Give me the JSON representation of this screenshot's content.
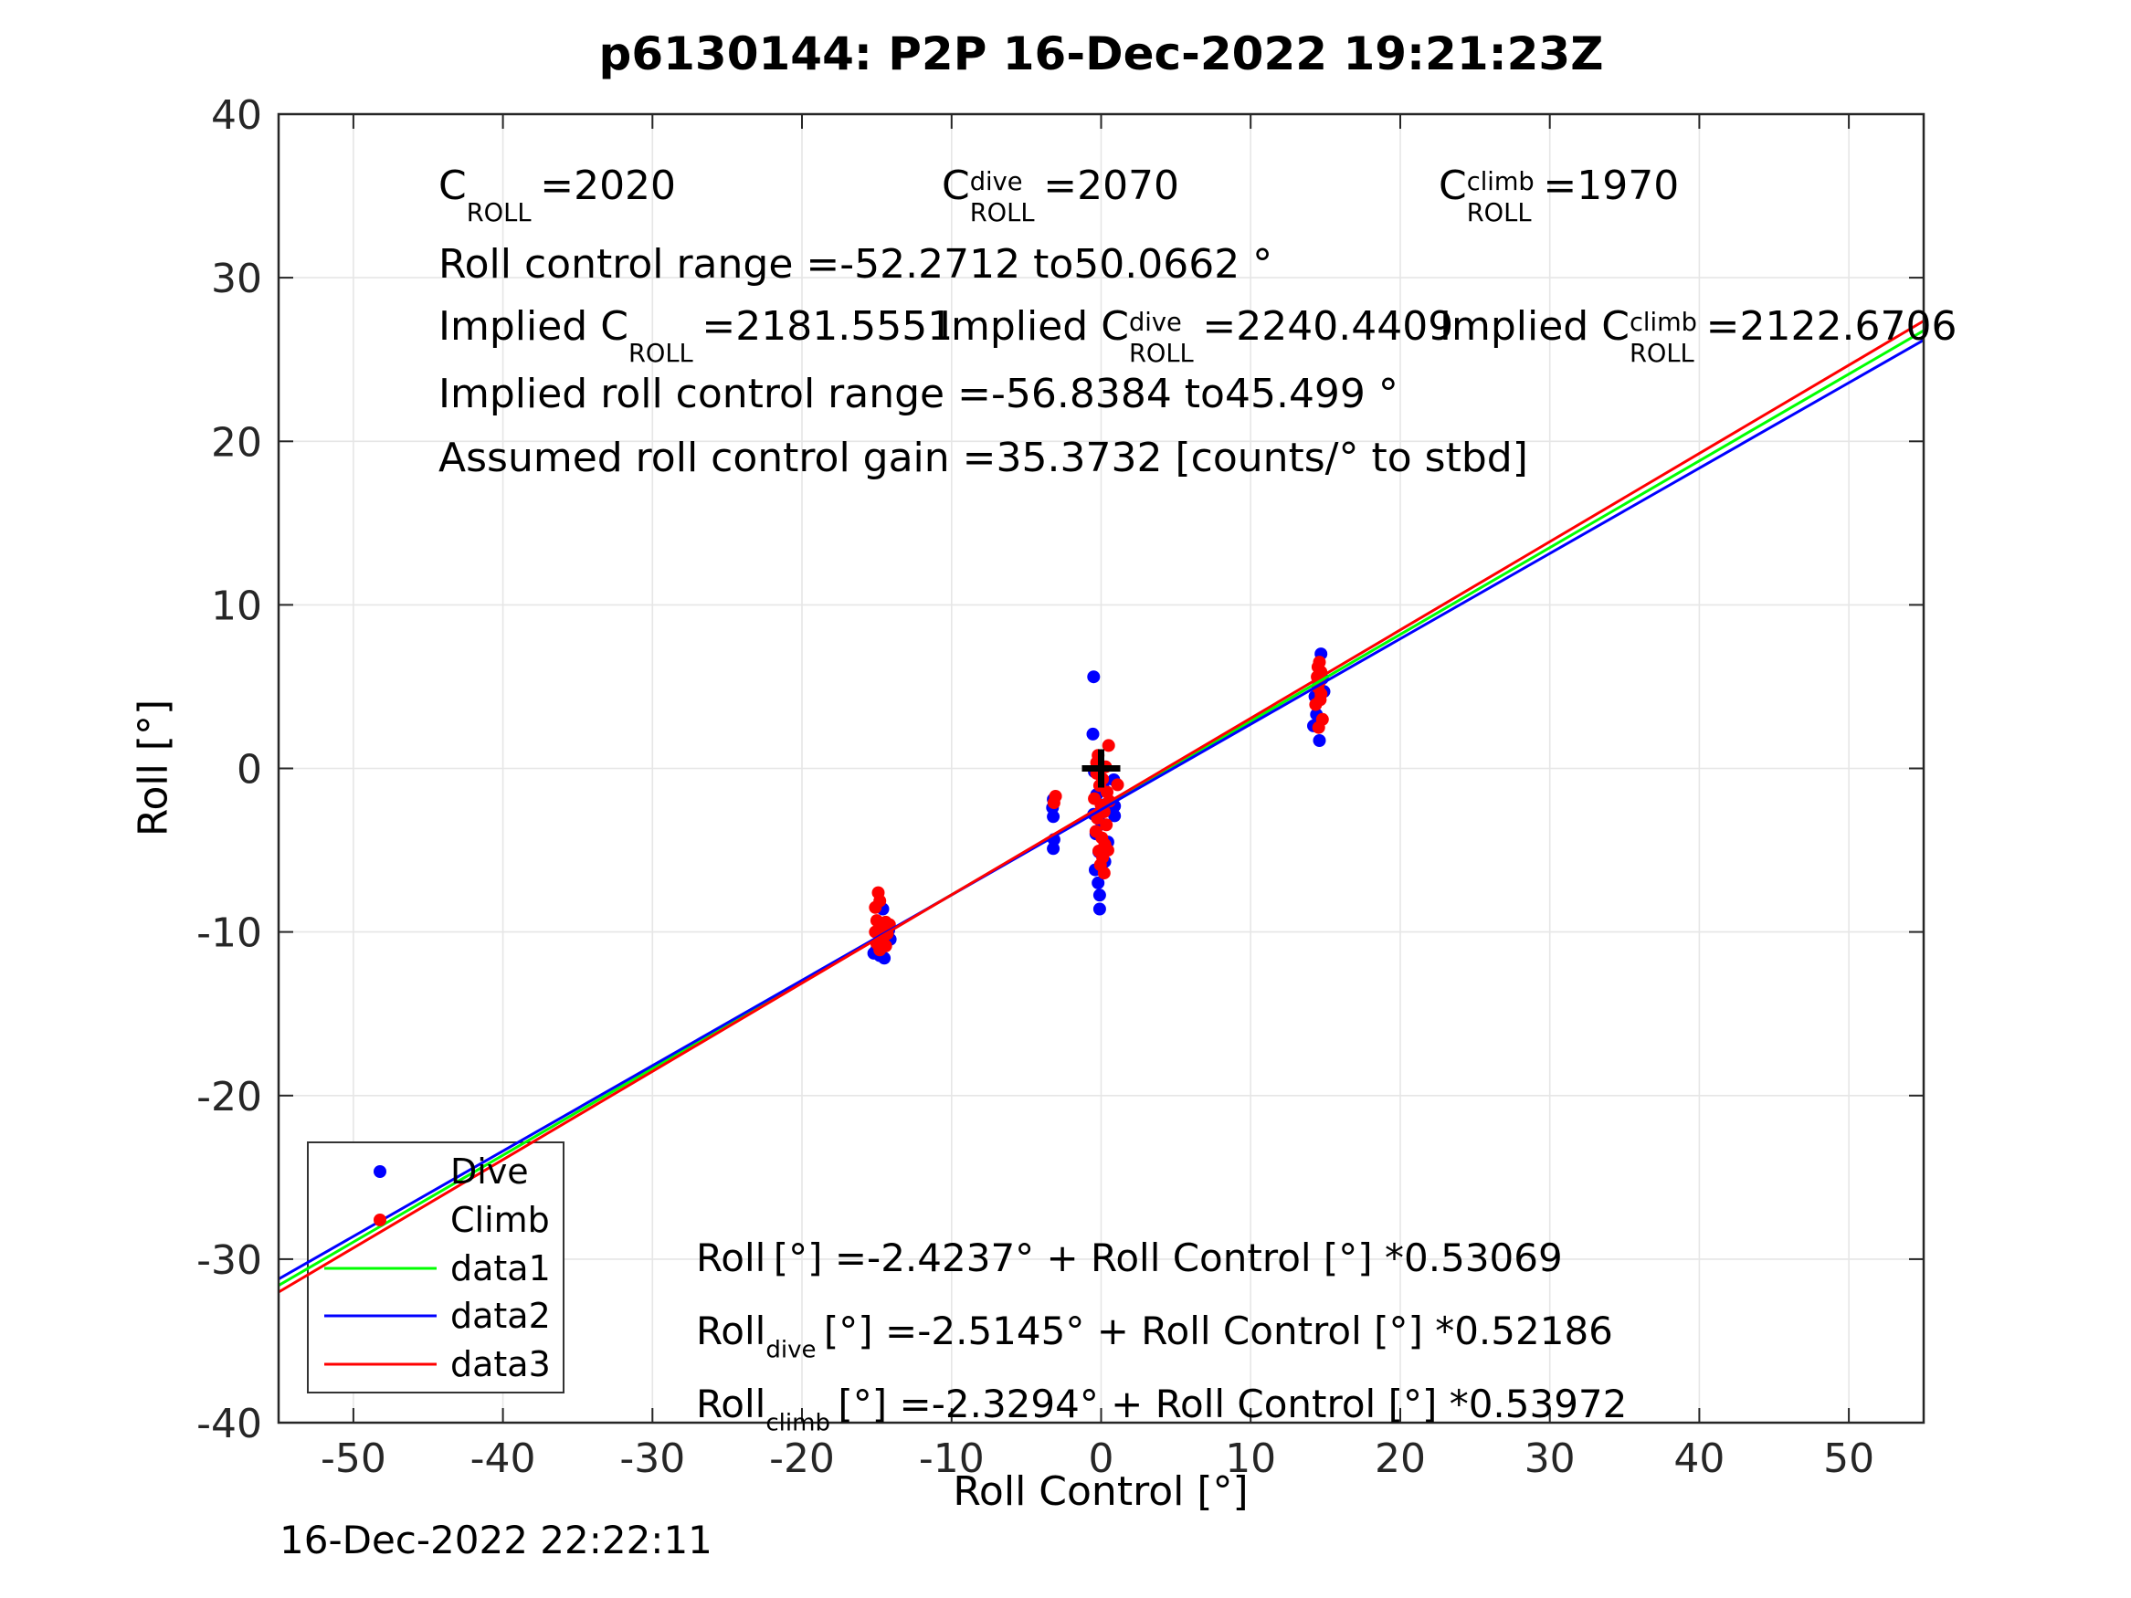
{
  "chart_data": {
    "type": "scatter",
    "title": "p6130144: P2P 16-Dec-2022 19:21:23Z",
    "xlabel": "Roll Control [°]",
    "ylabel": "Roll [°]",
    "footer_timestamp": "16-Dec-2022 22:22:11",
    "xlim": [
      -55,
      55
    ],
    "ylim": [
      -40,
      40
    ],
    "x_ticks": [
      -50,
      -40,
      -30,
      -20,
      -10,
      0,
      10,
      20,
      30,
      40,
      50
    ],
    "y_ticks": [
      -40,
      -30,
      -20,
      -10,
      0,
      10,
      20,
      30,
      40
    ],
    "grid": true,
    "colors": {
      "grid": "#e6e6e6",
      "axis": "#262626",
      "dive": "#0000ff",
      "climb": "#ff0000",
      "fit_all": "#00ff00",
      "background": "#ffffff",
      "origin_marker": "#000000"
    },
    "origin_marker": {
      "x": 0,
      "y": 0,
      "shape": "plus"
    },
    "series": [
      {
        "name": "Dive",
        "color": "#0000ff",
        "marker": "dot",
        "points": [
          [
            -15.2,
            -11.3
          ],
          [
            -14.8,
            -11.45
          ],
          [
            -14.5,
            -11.6
          ],
          [
            -14.9,
            -10.9
          ],
          [
            -15.0,
            -11.05
          ],
          [
            -14.3,
            -10.2
          ],
          [
            -14.1,
            -10.45
          ],
          [
            -14.6,
            -8.6
          ],
          [
            -14.2,
            -9.9
          ],
          [
            -3.2,
            -1.9
          ],
          [
            -3.25,
            -2.4
          ],
          [
            -3.2,
            -2.95
          ],
          [
            -3.15,
            -4.35
          ],
          [
            -3.2,
            -4.9
          ],
          [
            -0.5,
            5.6
          ],
          [
            -0.55,
            2.1
          ],
          [
            0.85,
            -0.7
          ],
          [
            0.9,
            -2.3
          ],
          [
            0.9,
            -2.9
          ],
          [
            -0.45,
            -0.2
          ],
          [
            0.15,
            -0.9
          ],
          [
            -0.3,
            -1.6
          ],
          [
            0.3,
            -2.2
          ],
          [
            -0.5,
            -2.8
          ],
          [
            0.05,
            -3.4
          ],
          [
            -0.35,
            -4.0
          ],
          [
            0.45,
            -4.5
          ],
          [
            -0.15,
            -5.1
          ],
          [
            0.25,
            -5.7
          ],
          [
            -0.4,
            -6.2
          ],
          [
            -0.2,
            -7.0
          ],
          [
            -0.1,
            -7.75
          ],
          [
            -0.1,
            -8.6
          ],
          [
            14.7,
            7.0
          ],
          [
            14.8,
            5.5
          ],
          [
            14.5,
            5.0
          ],
          [
            14.9,
            4.7
          ],
          [
            14.3,
            4.4
          ],
          [
            14.4,
            3.3
          ],
          [
            14.2,
            2.6
          ],
          [
            14.6,
            1.7
          ]
        ]
      },
      {
        "name": "Climb",
        "color": "#ff0000",
        "marker": "dot",
        "points": [
          [
            -14.9,
            -7.6
          ],
          [
            -14.8,
            -8.1
          ],
          [
            -15.1,
            -8.5
          ],
          [
            -15.0,
            -9.3
          ],
          [
            -14.4,
            -9.4
          ],
          [
            -14.15,
            -9.55
          ],
          [
            -14.8,
            -9.8
          ],
          [
            -15.1,
            -10.0
          ],
          [
            -14.3,
            -10.1
          ],
          [
            -14.6,
            -10.4
          ],
          [
            -15.0,
            -10.7
          ],
          [
            -14.4,
            -10.85
          ],
          [
            -14.8,
            -11.1
          ],
          [
            -3.05,
            -1.7
          ],
          [
            -3.15,
            -2.1
          ],
          [
            0.5,
            1.4
          ],
          [
            -0.2,
            0.8
          ],
          [
            -0.3,
            0.35
          ],
          [
            0.3,
            0.1
          ],
          [
            -0.3,
            -0.3
          ],
          [
            0.1,
            -0.65
          ],
          [
            -0.1,
            -1.05
          ],
          [
            0.4,
            -1.45
          ],
          [
            -0.45,
            -1.85
          ],
          [
            0.0,
            -2.25
          ],
          [
            0.2,
            -2.65
          ],
          [
            -0.25,
            -3.05
          ],
          [
            0.35,
            -3.45
          ],
          [
            -0.35,
            -3.85
          ],
          [
            0.05,
            -4.25
          ],
          [
            0.25,
            -4.65
          ],
          [
            -0.15,
            -5.05
          ],
          [
            0.45,
            -5.0
          ],
          [
            0.1,
            -5.45
          ],
          [
            -0.05,
            -5.9
          ],
          [
            0.2,
            -6.4
          ],
          [
            1.1,
            -1.0
          ],
          [
            0.55,
            -2.0
          ],
          [
            0.3,
            -4.95
          ],
          [
            14.6,
            6.5
          ],
          [
            14.5,
            6.2
          ],
          [
            14.7,
            5.9
          ],
          [
            14.45,
            5.6
          ],
          [
            14.6,
            5.3
          ],
          [
            14.5,
            4.95
          ],
          [
            14.7,
            4.55
          ],
          [
            14.65,
            4.2
          ],
          [
            14.35,
            3.9
          ],
          [
            14.8,
            3.0
          ],
          [
            14.55,
            2.5
          ]
        ]
      }
    ],
    "fit_lines": [
      {
        "name": "data1",
        "color": "#00ff00",
        "intercept": -2.4237,
        "slope": 0.53069
      },
      {
        "name": "data2",
        "color": "#0000ff",
        "intercept": -2.5145,
        "slope": 0.52186
      },
      {
        "name": "data3",
        "color": "#ff0000",
        "intercept": -2.3294,
        "slope": 0.53972
      }
    ],
    "legend": {
      "position": "southwest",
      "entries": [
        {
          "label": "Dive",
          "type": "marker",
          "color": "#0000ff"
        },
        {
          "label": "Climb",
          "type": "marker",
          "color": "#ff0000"
        },
        {
          "label": "data1",
          "type": "line",
          "color": "#00ff00"
        },
        {
          "label": "data2",
          "type": "line",
          "color": "#0000ff"
        },
        {
          "label": "data3",
          "type": "line",
          "color": "#ff0000"
        }
      ]
    }
  },
  "annotations": {
    "row1": [
      {
        "base": "C",
        "sup": "",
        "sub": "ROLL",
        "value": "=2020"
      },
      {
        "base": "C",
        "sup": "dive",
        "sub": "ROLL",
        "value": "=2070"
      },
      {
        "base": "C",
        "sup": "climb",
        "sub": "ROLL",
        "value": "=1970"
      }
    ],
    "row2": "Roll control range =-52.2712 to50.0662 °",
    "row3": [
      {
        "prefix": "Implied C",
        "sup": "",
        "sub": "ROLL",
        "value": "=2181.5551"
      },
      {
        "prefix": "Implied C",
        "sup": "dive",
        "sub": "ROLL",
        "value": "=2240.4409"
      },
      {
        "prefix": "Implied C",
        "sup": "climb",
        "sub": "ROLL",
        "value": "=2122.6706"
      }
    ],
    "row4": "Implied roll control range =-56.8384 to45.499 °",
    "row5": "Assumed roll control gain =35.3732 [counts/° to stbd]"
  },
  "equations": [
    {
      "base": "Roll",
      "sub": "",
      "rest": "[°] =-2.4237° + Roll Control [°] *0.53069"
    },
    {
      "base": "Roll",
      "sub": "dive",
      "rest": "[°] =-2.5145° + Roll Control [°] *0.52186"
    },
    {
      "base": "Roll",
      "sub": "climb",
      "rest": "[°] =-2.3294° + Roll Control [°] *0.53972"
    }
  ]
}
